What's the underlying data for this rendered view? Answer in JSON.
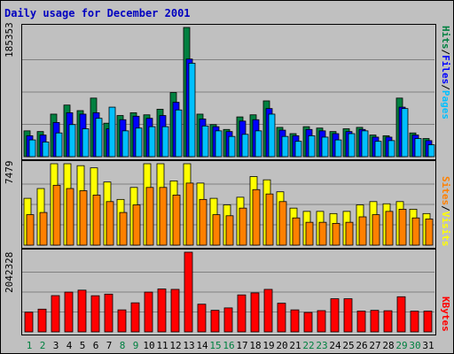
{
  "title": "Daily usage for December 2001",
  "colors": {
    "hits": "#008040",
    "files": "#0000ff",
    "pages": "#00c0ff",
    "visits": "#ffff00",
    "sites": "#ff8000",
    "kbytes": "#ff0000",
    "weekday_label": "#000000",
    "weekend_label": "#008040"
  },
  "chart_data": [
    {
      "type": "bar",
      "name": "hits-files-pages",
      "ymax_label": "185353",
      "ylim": [
        0,
        185353
      ],
      "legend": [
        "Hits",
        "/",
        "Files",
        "/",
        "Pages"
      ],
      "categories": [
        "1",
        "2",
        "3",
        "4",
        "5",
        "6",
        "7",
        "8",
        "9",
        "10",
        "11",
        "12",
        "13",
        "14",
        "15",
        "16",
        "17",
        "18",
        "19",
        "20",
        "21",
        "22",
        "23",
        "24",
        "25",
        "26",
        "27",
        "28",
        "29",
        "30",
        "31"
      ],
      "weekend_days": [
        "1",
        "2",
        "8",
        "9",
        "15",
        "16",
        "22",
        "23",
        "29",
        "30"
      ],
      "series": [
        {
          "name": "Hits",
          "values": [
            37000,
            36000,
            61000,
            74000,
            66000,
            84000,
            48000,
            59000,
            63000,
            60000,
            68000,
            92000,
            185353,
            61000,
            46000,
            39000,
            57000,
            60000,
            80000,
            42000,
            33000,
            43000,
            41000,
            36000,
            40000,
            42000,
            31000,
            30000,
            84000,
            34000,
            26000
          ]
        },
        {
          "name": "Files",
          "values": [
            30000,
            31000,
            49000,
            63000,
            61000,
            63000,
            40000,
            53000,
            58000,
            55000,
            59000,
            78000,
            140000,
            54000,
            43000,
            36000,
            51000,
            53000,
            69000,
            38000,
            30000,
            39000,
            37000,
            33000,
            36000,
            39000,
            28000,
            28000,
            71000,
            31000,
            23000
          ]
        },
        {
          "name": "Pages",
          "values": [
            24000,
            21000,
            34000,
            46000,
            40000,
            55000,
            71000,
            37000,
            41000,
            43000,
            43000,
            67000,
            134000,
            44000,
            37000,
            29000,
            32000,
            37000,
            61000,
            29000,
            22000,
            30000,
            28000,
            24000,
            33000,
            37000,
            22000,
            23000,
            69000,
            26000,
            17000
          ]
        }
      ]
    },
    {
      "type": "bar",
      "name": "visits-sites",
      "ymax_label": "7479",
      "ylim": [
        0,
        7479
      ],
      "legend": [
        "Sites",
        "/",
        "Visits"
      ],
      "categories": [
        "1",
        "2",
        "3",
        "4",
        "5",
        "6",
        "7",
        "8",
        "9",
        "10",
        "11",
        "12",
        "13",
        "14",
        "15",
        "16",
        "17",
        "18",
        "19",
        "20",
        "21",
        "22",
        "23",
        "24",
        "25",
        "26",
        "27",
        "28",
        "29",
        "30",
        "31"
      ],
      "series": [
        {
          "name": "Visits",
          "values": [
            4300,
            5200,
            7479,
            7479,
            7300,
            7100,
            5800,
            4200,
            5300,
            7479,
            7479,
            5900,
            7479,
            5700,
            4300,
            3700,
            4400,
            6300,
            6000,
            4900,
            3400,
            3100,
            3100,
            2900,
            3100,
            3700,
            4000,
            3800,
            4000,
            3300,
            2900
          ]
        },
        {
          "name": "Sites",
          "values": [
            2800,
            3000,
            5500,
            5200,
            5000,
            4600,
            4000,
            3000,
            3700,
            5300,
            5300,
            4600,
            5700,
            4200,
            2800,
            2700,
            3400,
            5100,
            4700,
            4000,
            2500,
            2100,
            2100,
            2000,
            2100,
            2600,
            2800,
            3100,
            3300,
            2500,
            2400
          ]
        }
      ]
    },
    {
      "type": "bar",
      "name": "kbytes",
      "ymax_label": "2042328",
      "ylim": [
        0,
        2042328
      ],
      "legend": [
        "KBytes"
      ],
      "categories": [
        "1",
        "2",
        "3",
        "4",
        "5",
        "6",
        "7",
        "8",
        "9",
        "10",
        "11",
        "12",
        "13",
        "14",
        "15",
        "16",
        "17",
        "18",
        "19",
        "20",
        "21",
        "22",
        "23",
        "24",
        "25",
        "26",
        "27",
        "28",
        "29",
        "30",
        "31"
      ],
      "series": [
        {
          "name": "KBytes",
          "values": [
            505000,
            583000,
            930000,
            1020000,
            1070000,
            927000,
            968000,
            564000,
            745000,
            1020000,
            1100000,
            1090000,
            2042328,
            710000,
            553000,
            615000,
            948000,
            1000000,
            1090000,
            735000,
            564000,
            498000,
            545000,
            850000,
            850000,
            533000,
            552000,
            542000,
            901000,
            531000,
            532000
          ]
        }
      ]
    }
  ]
}
